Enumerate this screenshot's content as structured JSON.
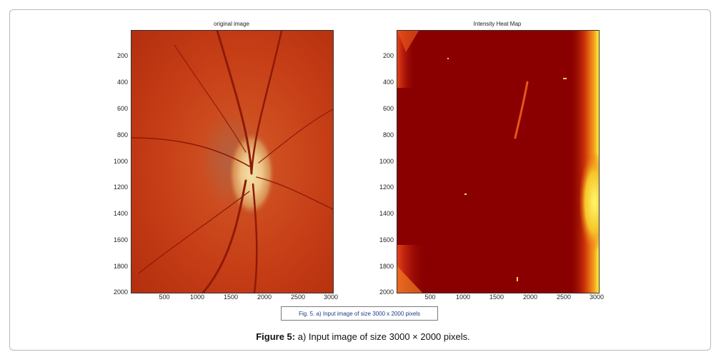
{
  "left_plot": {
    "title": "original image",
    "y_ticks": [
      "200",
      "400",
      "600",
      "800",
      "1000",
      "1200",
      "1400",
      "1600",
      "1800",
      "2000"
    ],
    "x_ticks": [
      "500",
      "1000",
      "1500",
      "2000",
      "2500",
      "3000"
    ],
    "image_content": "retina-fundus"
  },
  "right_plot": {
    "title": "Intensity Heat Map",
    "y_ticks": [
      "200",
      "400",
      "600",
      "800",
      "1000",
      "1200",
      "1400",
      "1600",
      "1800",
      "2000"
    ],
    "x_ticks": [
      "500",
      "1000",
      "1500",
      "2000",
      "2500",
      "3000"
    ],
    "image_content": "intensity-heatmap"
  },
  "inset_caption": "Fig. 5. a) Input image of size 3000 x 2000 pixels",
  "figure_caption": {
    "label": "Figure 5:",
    "text": " a) Input image of size 3000 × 2000 pixels."
  },
  "colors": {
    "fundus_base": "#c8401a",
    "heatmap_base": "#8a0000",
    "heatmap_hot": "#fff23a",
    "frame_border": "#b9b9b9"
  }
}
